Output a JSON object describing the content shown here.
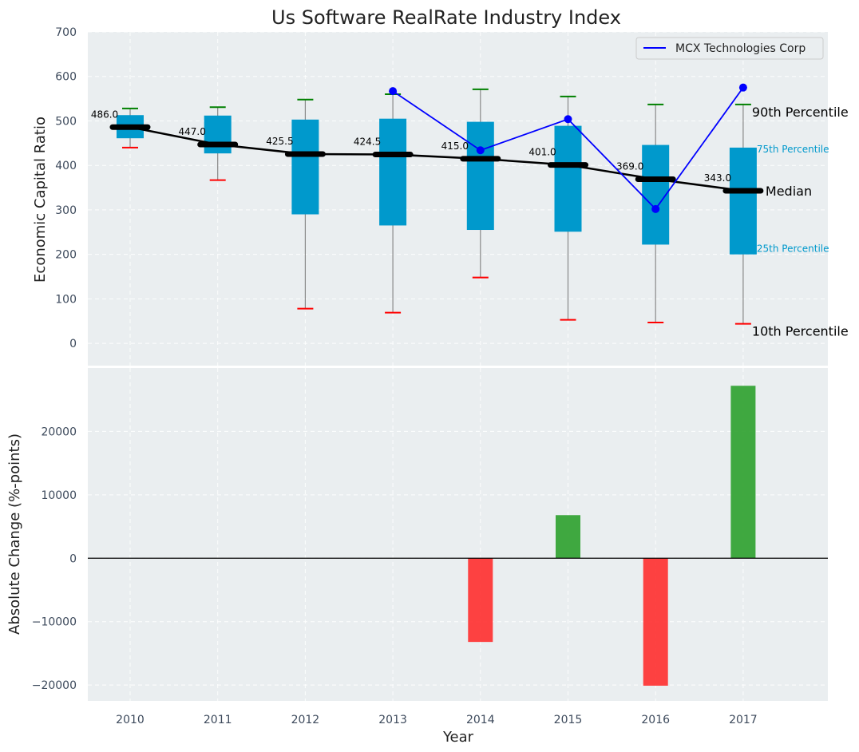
{
  "chart_data": [
    {
      "type": "box",
      "title": "Us Software RealRate Industry Index",
      "ylabel": "Economic Capital Ratio",
      "ylim": [
        -50,
        700
      ],
      "yticks": [
        0,
        100,
        200,
        300,
        400,
        500,
        600,
        700
      ],
      "grid": true,
      "legend": {
        "position": "top-right",
        "entries": [
          "MCX Technologies Corp"
        ]
      },
      "categories": [
        "2010",
        "2011",
        "2012",
        "2013",
        "2014",
        "2015",
        "2016",
        "2017"
      ],
      "p10": [
        440,
        367,
        78,
        69,
        148,
        53,
        47,
        44
      ],
      "p25": [
        461,
        427,
        290,
        265,
        255,
        251,
        222,
        200
      ],
      "median": [
        486.0,
        447.0,
        425.5,
        424.5,
        415.0,
        401.0,
        369.0,
        343.0
      ],
      "p75": [
        513,
        512,
        503,
        505,
        498,
        489,
        446,
        440
      ],
      "p90": [
        528,
        531,
        548,
        560,
        571,
        555,
        537,
        537
      ],
      "median_labels": [
        "486.0",
        "447.0",
        "425.5",
        "424.5",
        "415.0",
        "401.0",
        "369.0",
        "343.0"
      ],
      "series": [
        {
          "name": "MCX Technologies Corp",
          "values": [
            null,
            null,
            null,
            567,
            434,
            504,
            302,
            575
          ],
          "color": "#0000ff"
        }
      ],
      "annotations": {
        "p90": "90th Percentile",
        "p75": "75th Percentile",
        "median": "Median",
        "p25": "25th Percentile",
        "p10": "10th Percentile"
      },
      "colors": {
        "box": "#0099cc",
        "median": "#000000",
        "p90_cap": "#008000",
        "p10_cap": "#ff0000",
        "whisker": "#888888"
      }
    },
    {
      "type": "bar",
      "ylabel": "Absolute Change (%-points)",
      "xlabel": "Year",
      "ylim": [
        -22500,
        30000
      ],
      "yticks": [
        -20000,
        -10000,
        0,
        10000,
        20000
      ],
      "ytick_labels": [
        "−20000",
        "−10000",
        "0",
        "10000",
        "20000"
      ],
      "grid": true,
      "categories": [
        "2010",
        "2011",
        "2012",
        "2013",
        "2014",
        "2015",
        "2016",
        "2017"
      ],
      "values": [
        0,
        0,
        0,
        0,
        -13200,
        6800,
        -20100,
        27200
      ],
      "colors": {
        "positive": "#2ca02c",
        "negative": "#ff2d2d"
      }
    }
  ]
}
